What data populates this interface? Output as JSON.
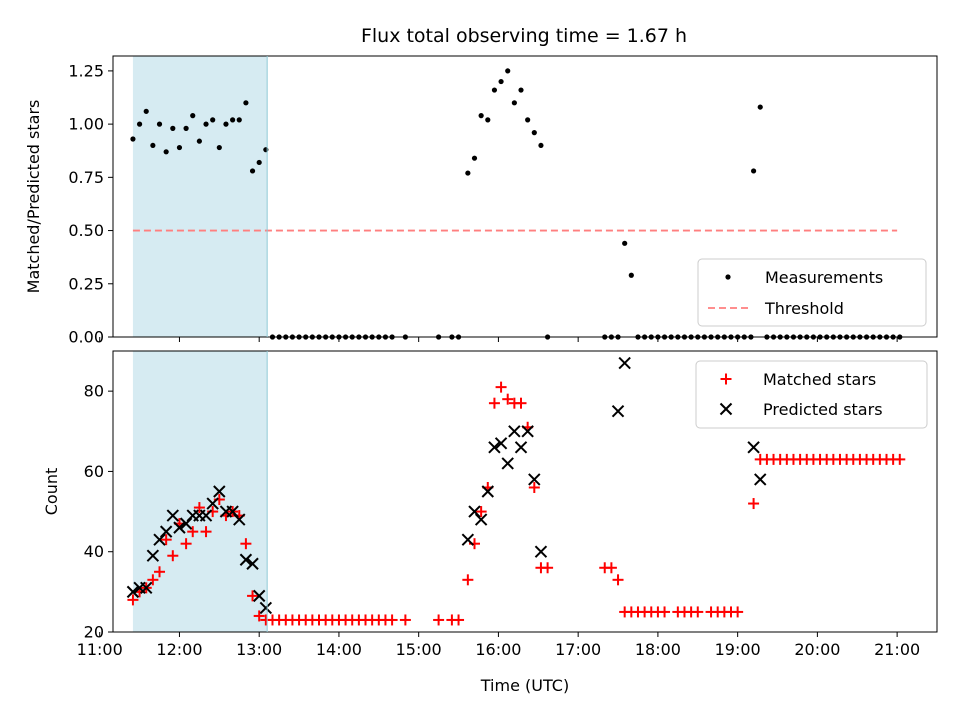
{
  "figure": {
    "title": "Flux total observing time = 1.67 h"
  },
  "chart_data": [
    {
      "type": "scatter",
      "panel": "top",
      "title": "Flux total observing time = 1.67 h",
      "xlabel": "",
      "ylabel": "Matched/Predicted stars",
      "xlim": [
        "11:10",
        "21:30"
      ],
      "ylim": [
        0,
        1.32
      ],
      "yticks": [
        "0.00",
        "0.25",
        "0.50",
        "0.75",
        "1.00",
        "1.25"
      ],
      "xticks": [
        "11:00",
        "12:00",
        "13:00",
        "14:00",
        "15:00",
        "16:00",
        "17:00",
        "18:00",
        "19:00",
        "20:00",
        "21:00"
      ],
      "shaded_region": {
        "x": [
          "11:25",
          "13:06"
        ],
        "color": "#add8e6"
      },
      "threshold": {
        "name": "Threshold",
        "value": 0.5,
        "x": [
          "11:25",
          "21:00"
        ],
        "color": "#ff7f7f"
      },
      "legend": {
        "placement": "lower-right",
        "entries": [
          "Measurements",
          "Threshold"
        ]
      },
      "series": [
        {
          "name": "Measurements",
          "color": "#000000",
          "marker": "dot",
          "points": [
            [
              "11:25",
              0.93
            ],
            [
              "11:30",
              1.0
            ],
            [
              "11:35",
              1.06
            ],
            [
              "11:40",
              0.9
            ],
            [
              "11:45",
              1.0
            ],
            [
              "11:50",
              0.87
            ],
            [
              "11:55",
              0.98
            ],
            [
              "12:00",
              0.89
            ],
            [
              "12:05",
              0.98
            ],
            [
              "12:10",
              1.04
            ],
            [
              "12:15",
              0.92
            ],
            [
              "12:20",
              1.0
            ],
            [
              "12:25",
              1.02
            ],
            [
              "12:30",
              0.89
            ],
            [
              "12:35",
              1.0
            ],
            [
              "12:40",
              1.02
            ],
            [
              "12:45",
              1.02
            ],
            [
              "12:50",
              1.1
            ],
            [
              "12:55",
              0.78
            ],
            [
              "13:00",
              0.82
            ],
            [
              "13:05",
              0.88
            ],
            [
              "13:10",
              0
            ],
            [
              "13:15",
              0
            ],
            [
              "13:20",
              0
            ],
            [
              "13:25",
              0
            ],
            [
              "13:30",
              0
            ],
            [
              "13:35",
              0
            ],
            [
              "13:40",
              0
            ],
            [
              "13:45",
              0
            ],
            [
              "13:50",
              0
            ],
            [
              "13:55",
              0
            ],
            [
              "14:00",
              0
            ],
            [
              "14:05",
              0
            ],
            [
              "14:10",
              0
            ],
            [
              "14:15",
              0
            ],
            [
              "14:20",
              0
            ],
            [
              "14:25",
              0
            ],
            [
              "14:30",
              0
            ],
            [
              "14:35",
              0
            ],
            [
              "14:40",
              0
            ],
            [
              "14:50",
              0
            ],
            [
              "15:15",
              0
            ],
            [
              "15:25",
              0
            ],
            [
              "15:30",
              0
            ],
            [
              "15:37",
              0.77
            ],
            [
              "15:42",
              0.84
            ],
            [
              "15:47",
              1.04
            ],
            [
              "15:52",
              1.02
            ],
            [
              "15:57",
              1.16
            ],
            [
              "16:02",
              1.2
            ],
            [
              "16:07",
              1.25
            ],
            [
              "16:12",
              1.1
            ],
            [
              "16:17",
              1.16
            ],
            [
              "16:22",
              1.02
            ],
            [
              "16:27",
              0.96
            ],
            [
              "16:32",
              0.9
            ],
            [
              "16:37",
              0
            ],
            [
              "17:20",
              0
            ],
            [
              "17:25",
              0
            ],
            [
              "17:30",
              0
            ],
            [
              "17:35",
              0.44
            ],
            [
              "17:40",
              0.29
            ],
            [
              "17:45",
              0
            ],
            [
              "17:50",
              0
            ],
            [
              "17:55",
              0
            ],
            [
              "18:00",
              0
            ],
            [
              "18:05",
              0
            ],
            [
              "18:10",
              0
            ],
            [
              "18:15",
              0
            ],
            [
              "18:20",
              0
            ],
            [
              "18:25",
              0
            ],
            [
              "18:30",
              0
            ],
            [
              "18:35",
              0
            ],
            [
              "18:40",
              0
            ],
            [
              "18:45",
              0
            ],
            [
              "18:50",
              0
            ],
            [
              "18:55",
              0
            ],
            [
              "19:00",
              0
            ],
            [
              "19:05",
              0
            ],
            [
              "19:10",
              0
            ],
            [
              "19:12",
              0.78
            ],
            [
              "19:17",
              1.08
            ],
            [
              "19:22",
              0
            ],
            [
              "19:27",
              0
            ],
            [
              "19:32",
              0
            ],
            [
              "19:37",
              0
            ],
            [
              "19:42",
              0
            ],
            [
              "19:47",
              0
            ],
            [
              "19:52",
              0
            ],
            [
              "19:57",
              0
            ],
            [
              "20:02",
              0
            ],
            [
              "20:07",
              0
            ],
            [
              "20:12",
              0
            ],
            [
              "20:17",
              0
            ],
            [
              "20:22",
              0
            ],
            [
              "20:27",
              0
            ],
            [
              "20:32",
              0
            ],
            [
              "20:37",
              0
            ],
            [
              "20:42",
              0
            ],
            [
              "20:47",
              0
            ],
            [
              "20:52",
              0
            ],
            [
              "20:57",
              0
            ],
            [
              "21:02",
              0
            ]
          ]
        }
      ]
    },
    {
      "type": "scatter",
      "panel": "bottom",
      "title": "",
      "xlabel": "Time (UTC)",
      "ylabel": "Count",
      "xlim": [
        "11:10",
        "21:30"
      ],
      "ylim": [
        20,
        90
      ],
      "yticks": [
        "20",
        "40",
        "60",
        "80"
      ],
      "xticks": [
        "11:00",
        "12:00",
        "13:00",
        "14:00",
        "15:00",
        "16:00",
        "17:00",
        "18:00",
        "19:00",
        "20:00",
        "21:00"
      ],
      "shaded_region": {
        "x": [
          "11:25",
          "13:06"
        ],
        "color": "#add8e6"
      },
      "legend": {
        "placement": "top-right",
        "entries": [
          "Matched stars",
          "Predicted stars"
        ]
      },
      "series": [
        {
          "name": "Matched stars",
          "color": "#ff0000",
          "marker": "plus",
          "points": [
            [
              "11:25",
              28
            ],
            [
              "11:30",
              30
            ],
            [
              "11:35",
              31
            ],
            [
              "11:40",
              33
            ],
            [
              "11:45",
              35
            ],
            [
              "11:50",
              43
            ],
            [
              "11:55",
              39
            ],
            [
              "12:00",
              47
            ],
            [
              "12:05",
              42
            ],
            [
              "12:10",
              45
            ],
            [
              "12:15",
              51
            ],
            [
              "12:20",
              45
            ],
            [
              "12:25",
              50
            ],
            [
              "12:30",
              53
            ],
            [
              "12:35",
              49
            ],
            [
              "12:40",
              50
            ],
            [
              "12:45",
              49
            ],
            [
              "12:50",
              42
            ],
            [
              "12:55",
              29
            ],
            [
              "13:00",
              24
            ],
            [
              "13:05",
              23
            ],
            [
              "13:10",
              23
            ],
            [
              "13:15",
              23
            ],
            [
              "13:20",
              23
            ],
            [
              "13:25",
              23
            ],
            [
              "13:30",
              23
            ],
            [
              "13:35",
              23
            ],
            [
              "13:40",
              23
            ],
            [
              "13:45",
              23
            ],
            [
              "13:50",
              23
            ],
            [
              "13:55",
              23
            ],
            [
              "14:00",
              23
            ],
            [
              "14:05",
              23
            ],
            [
              "14:10",
              23
            ],
            [
              "14:15",
              23
            ],
            [
              "14:20",
              23
            ],
            [
              "14:25",
              23
            ],
            [
              "14:30",
              23
            ],
            [
              "14:35",
              23
            ],
            [
              "14:40",
              23
            ],
            [
              "14:50",
              23
            ],
            [
              "15:15",
              23
            ],
            [
              "15:25",
              23
            ],
            [
              "15:30",
              23
            ],
            [
              "15:37",
              33
            ],
            [
              "15:42",
              42
            ],
            [
              "15:47",
              50
            ],
            [
              "15:52",
              56
            ],
            [
              "15:57",
              77
            ],
            [
              "16:02",
              81
            ],
            [
              "16:07",
              78
            ],
            [
              "16:12",
              77
            ],
            [
              "16:17",
              77
            ],
            [
              "16:22",
              71
            ],
            [
              "16:27",
              56
            ],
            [
              "16:32",
              36
            ],
            [
              "16:37",
              36
            ],
            [
              "17:20",
              36
            ],
            [
              "17:25",
              36
            ],
            [
              "17:30",
              33
            ],
            [
              "17:35",
              25
            ],
            [
              "17:40",
              25
            ],
            [
              "17:45",
              25
            ],
            [
              "17:50",
              25
            ],
            [
              "17:55",
              25
            ],
            [
              "18:00",
              25
            ],
            [
              "18:05",
              25
            ],
            [
              "18:15",
              25
            ],
            [
              "18:20",
              25
            ],
            [
              "18:25",
              25
            ],
            [
              "18:30",
              25
            ],
            [
              "18:40",
              25
            ],
            [
              "18:45",
              25
            ],
            [
              "18:50",
              25
            ],
            [
              "18:55",
              25
            ],
            [
              "19:00",
              25
            ],
            [
              "19:12",
              52
            ],
            [
              "19:17",
              63
            ],
            [
              "19:22",
              63
            ],
            [
              "19:27",
              63
            ],
            [
              "19:32",
              63
            ],
            [
              "19:37",
              63
            ],
            [
              "19:42",
              63
            ],
            [
              "19:47",
              63
            ],
            [
              "19:52",
              63
            ],
            [
              "19:57",
              63
            ],
            [
              "20:02",
              63
            ],
            [
              "20:07",
              63
            ],
            [
              "20:12",
              63
            ],
            [
              "20:17",
              63
            ],
            [
              "20:22",
              63
            ],
            [
              "20:27",
              63
            ],
            [
              "20:32",
              63
            ],
            [
              "20:37",
              63
            ],
            [
              "20:42",
              63
            ],
            [
              "20:47",
              63
            ],
            [
              "20:52",
              63
            ],
            [
              "20:57",
              63
            ],
            [
              "21:02",
              63
            ]
          ]
        },
        {
          "name": "Predicted stars",
          "color": "#000000",
          "marker": "x",
          "points": [
            [
              "11:25",
              30
            ],
            [
              "11:30",
              31
            ],
            [
              "11:35",
              31
            ],
            [
              "11:40",
              39
            ],
            [
              "11:45",
              43
            ],
            [
              "11:50",
              45
            ],
            [
              "11:55",
              49
            ],
            [
              "12:00",
              46
            ],
            [
              "12:05",
              47
            ],
            [
              "12:10",
              49
            ],
            [
              "12:15",
              49
            ],
            [
              "12:20",
              49
            ],
            [
              "12:25",
              52
            ],
            [
              "12:30",
              55
            ],
            [
              "12:35",
              50
            ],
            [
              "12:40",
              50
            ],
            [
              "12:45",
              48
            ],
            [
              "12:50",
              38
            ],
            [
              "12:55",
              37
            ],
            [
              "13:00",
              29
            ],
            [
              "13:05",
              26
            ],
            [
              "15:37",
              43
            ],
            [
              "15:42",
              50
            ],
            [
              "15:47",
              48
            ],
            [
              "15:52",
              55
            ],
            [
              "15:57",
              66
            ],
            [
              "16:02",
              67
            ],
            [
              "16:07",
              62
            ],
            [
              "16:12",
              70
            ],
            [
              "16:17",
              66
            ],
            [
              "16:22",
              70
            ],
            [
              "16:27",
              58
            ],
            [
              "16:32",
              40
            ],
            [
              "17:30",
              75
            ],
            [
              "17:35",
              87
            ],
            [
              "19:12",
              66
            ],
            [
              "19:17",
              58
            ]
          ]
        }
      ]
    }
  ]
}
